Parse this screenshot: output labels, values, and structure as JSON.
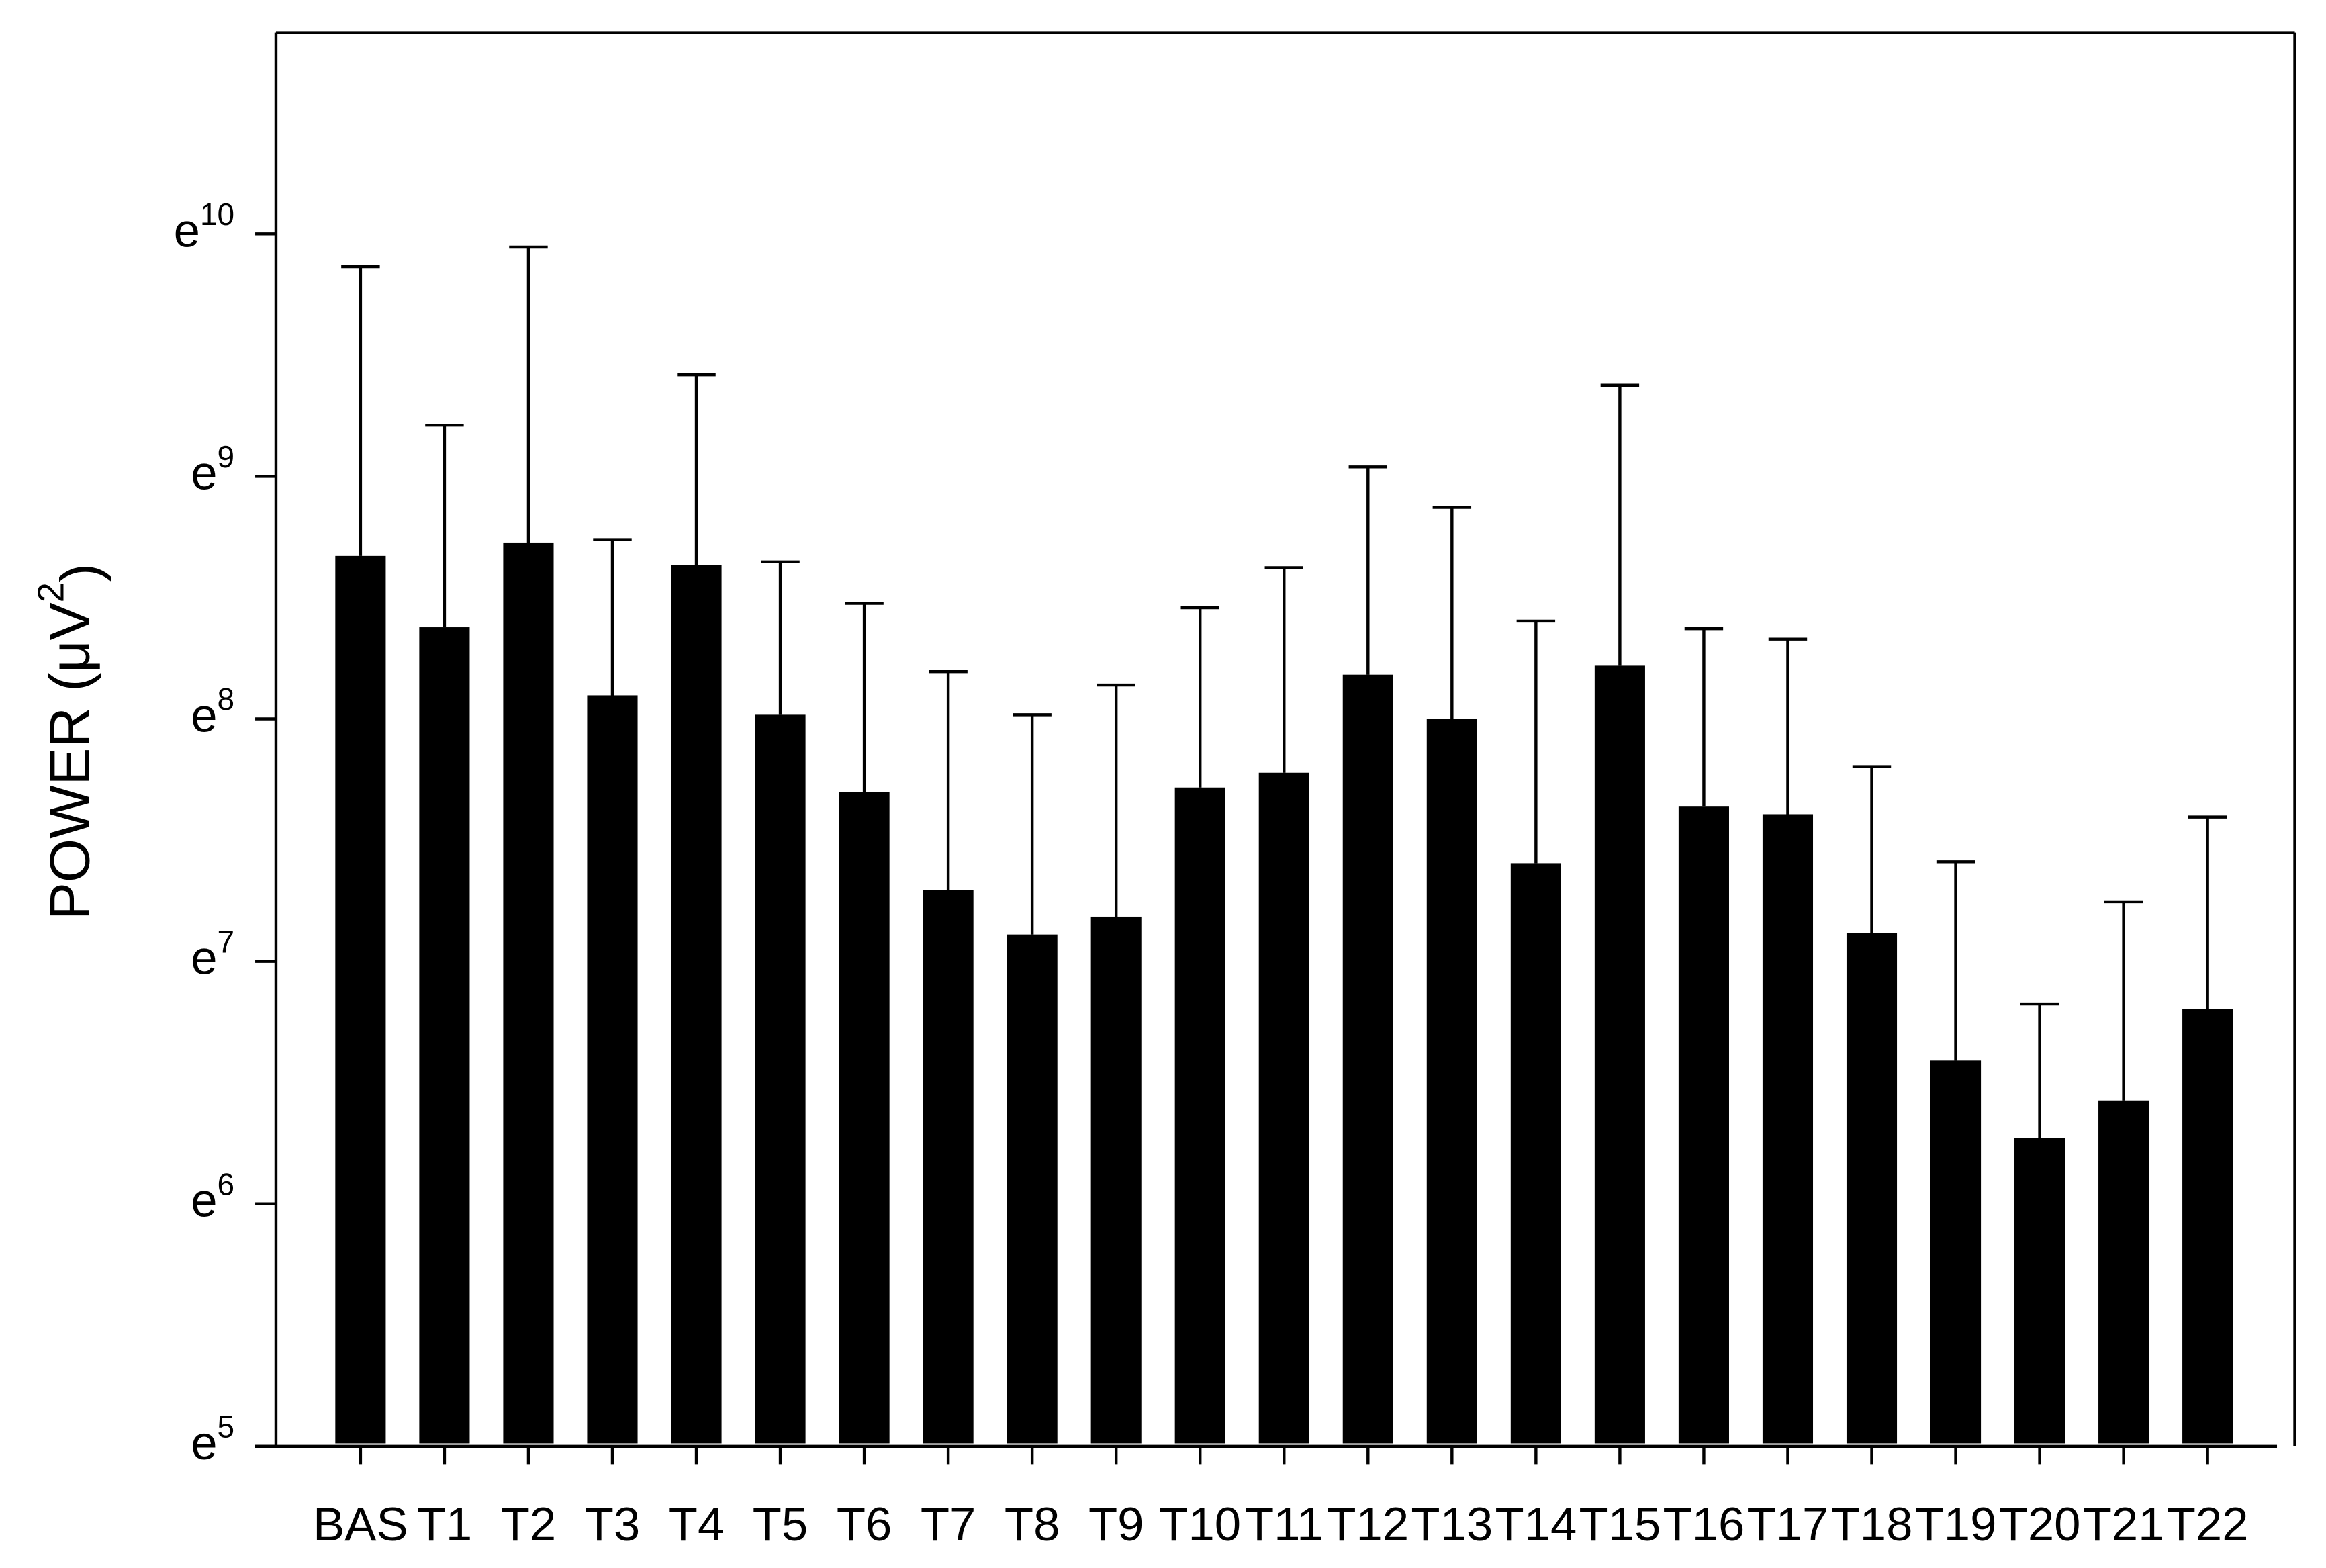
{
  "chart_data": {
    "type": "bar",
    "ylabel": "POWER (μV2)",
    "categories": [
      "BAS",
      "T1",
      "T2",
      "T3",
      "T4",
      "T5",
      "T6",
      "T7",
      "T8",
      "T9",
      "T10",
      "T11",
      "T12",
      "T13",
      "T14",
      "T15",
      "T16",
      "T17",
      "T18",
      "T19",
      "T20",
      "T21",
      "T22"
    ],
    "values": [
      5837,
      4350,
      6168,
      3285,
      5625,
      3032,
      2206,
      1473,
      1225,
      1319,
      2246,
      2387,
      3577,
      2978,
      1644,
      3711,
      2076,
      2012,
      1234,
      728.5,
      530,
      618,
      902
    ],
    "errors": [
      13408,
      5657,
      14689,
      2957,
      6692,
      2662,
      2594,
      2149,
      1807,
      2109,
      2468,
      3173,
      4848,
      4153,
      2817,
      8087,
      2249,
      2131,
      1214,
      925,
      390,
      784,
      1087
    ],
    "color": "#000000",
    "log_base": "e",
    "ylim": [
      148.41,
      50510
    ],
    "yticks": [
      {
        "value": 148.41,
        "label": "e5"
      },
      {
        "value": 403.43,
        "label": "e6"
      },
      {
        "value": 1096.63,
        "label": "e7"
      },
      {
        "value": 2980.96,
        "label": "e8"
      },
      {
        "value": 8103.08,
        "label": "e9"
      },
      {
        "value": 22026.47,
        "label": "e10"
      }
    ],
    "grid": false
  }
}
